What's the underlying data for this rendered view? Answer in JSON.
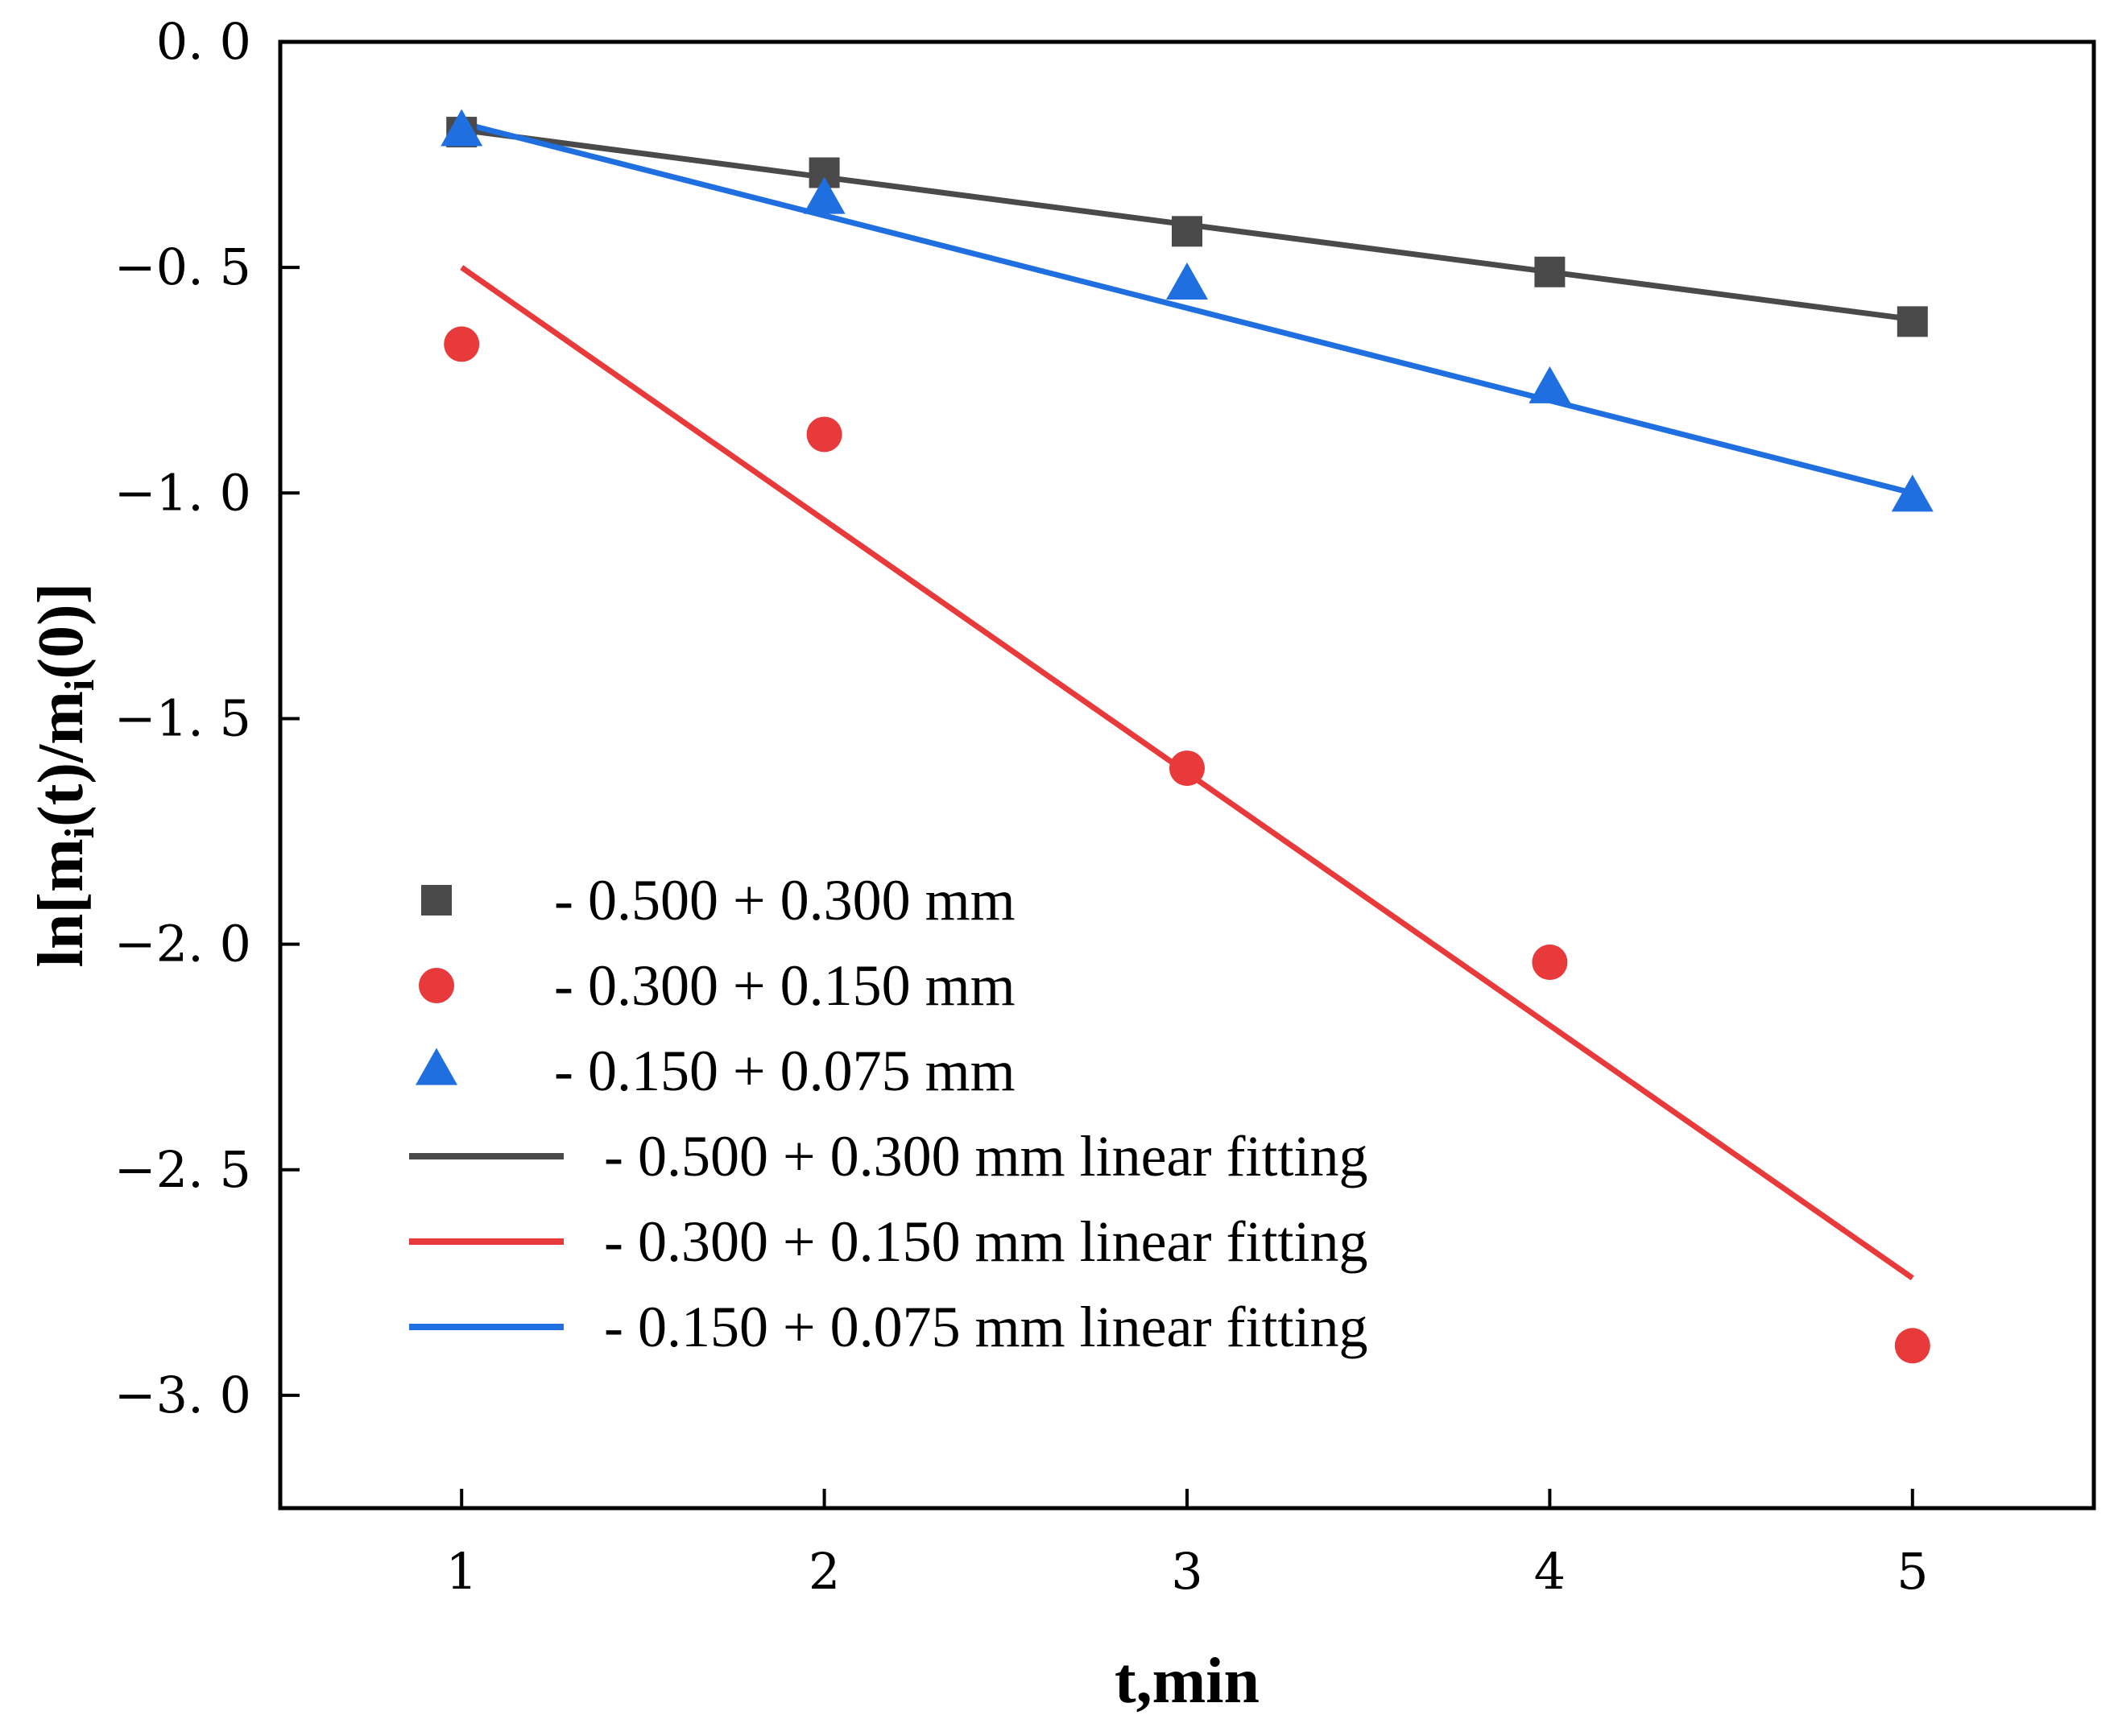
{
  "chart_data": {
    "type": "scatter",
    "title": "",
    "xlabel": "t,min",
    "ylabel_parts": [
      "ln[m",
      "i",
      "(t)/m",
      "i",
      "(0)]"
    ],
    "xlim": [
      0.5,
      5.5
    ],
    "ylim": [
      -3.25,
      0.0
    ],
    "x_ticks": [
      1,
      2,
      3,
      4,
      5
    ],
    "x_tick_labels": [
      "1",
      "2",
      "3",
      "4",
      "5"
    ],
    "y_ticks": [
      0.0,
      -0.5,
      -1.0,
      -1.5,
      -2.0,
      -2.5,
      -3.0
    ],
    "y_tick_labels": [
      "0. 0",
      "−0. 5",
      "−1. 0",
      "−1. 5",
      "−2. 0",
      "−2. 5",
      "−3. 0"
    ],
    "grid": false,
    "legend_position": "lower-left",
    "series": [
      {
        "name": "- 0.500 + 0.300 mm",
        "marker": "square",
        "color": "#4a4a4a",
        "x": [
          1,
          2,
          3,
          4,
          5
        ],
        "y": [
          -0.2,
          -0.29,
          -0.42,
          -0.51,
          -0.62
        ]
      },
      {
        "name": "- 0.300 + 0.150 mm",
        "marker": "circle",
        "color": "#e83a3a",
        "x": [
          1,
          2,
          3,
          4,
          5
        ],
        "y": [
          -0.67,
          -0.87,
          -1.61,
          -2.04,
          -2.89
        ]
      },
      {
        "name": "- 0.150 + 0.075 mm",
        "marker": "triangle",
        "color": "#1f6fe0",
        "x": [
          1,
          2,
          3,
          4,
          5
        ],
        "y": [
          -0.2,
          -0.35,
          -0.54,
          -0.77,
          -1.01
        ]
      }
    ],
    "fits": [
      {
        "name": "- 0.500 + 0.300 mm linear fitting",
        "color": "#4a4a4a",
        "x": [
          1,
          5
        ],
        "y": [
          -0.195,
          -0.615
        ]
      },
      {
        "name": "- 0.300 + 0.150 mm linear fitting",
        "color": "#e83a3a",
        "x": [
          1,
          5
        ],
        "y": [
          -0.5,
          -2.74
        ]
      },
      {
        "name": "- 0.150 + 0.075 mm linear fitting",
        "color": "#1f6fe0",
        "x": [
          1,
          5
        ],
        "y": [
          -0.18,
          -1.0
        ]
      }
    ]
  }
}
